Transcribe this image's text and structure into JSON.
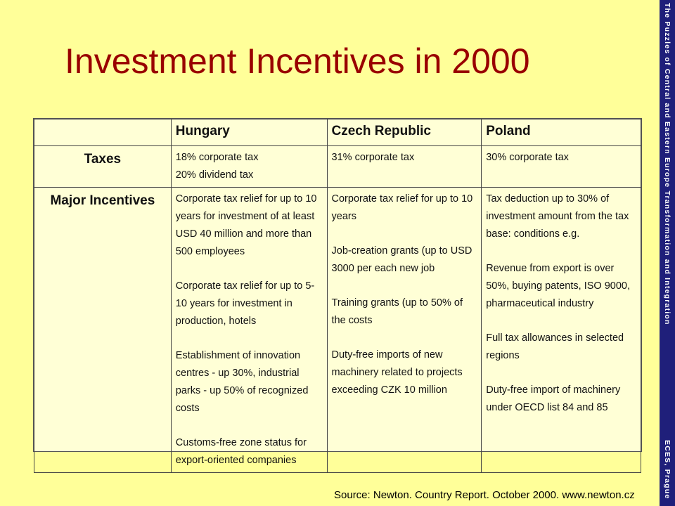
{
  "slide": {
    "title": "Investment Incentives in 2000",
    "sidebar_top": "The Puzzles of Central and Eastern Europe Transformation and Integration",
    "sidebar_bottom": "ECES, Prague",
    "source": "Source: Newton. Country Report. October 2000. www.newton.cz"
  },
  "table": {
    "headers": [
      "Hungary",
      "Czech Republic",
      "Poland"
    ],
    "rows": [
      {
        "label": "Taxes",
        "cells": [
          [
            "18% corporate tax\n20% dividend tax"
          ],
          [
            "31% corporate tax"
          ],
          [
            "30% corporate tax"
          ]
        ]
      },
      {
        "label": "Major Incentives",
        "cells": [
          [
            "Corporate tax relief for up to 10 years for investment of at least USD 40 million and more than 500 employees",
            "Corporate tax relief for up to 5-10 years for investment in production, hotels",
            "Establishment of innovation centres - up 30%, industrial parks - up 50% of recognized costs",
            "Customs-free zone status for export-oriented companies"
          ],
          [
            "Corporate tax relief for up to 10 years",
            "Job-creation grants (up to USD 3000 per each new job",
            "Training grants (up to 50% of the costs",
            "Duty-free imports of new machinery related to projects exceeding CZK 10 million"
          ],
          [
            "Tax deduction up to 30% of investment amount from the tax base: conditions e.g.",
            "Revenue from export is over 50%, buying patents, ISO 9000, pharmaceutical industry",
            "Full tax allowances in selected regions",
            "Duty-free import of machinery under OECD list 84 and 85"
          ]
        ]
      }
    ]
  }
}
